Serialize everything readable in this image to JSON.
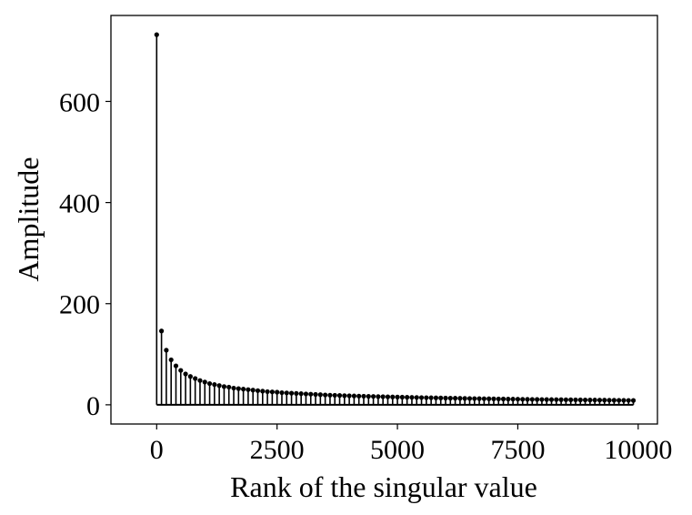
{
  "chart_data": {
    "type": "stem",
    "xlabel": "Rank of the singular value",
    "ylabel": "Amplitude",
    "xlim": [
      -950,
      10400
    ],
    "ylim": [
      -38,
      770
    ],
    "xticks": [
      0,
      2500,
      5000,
      7500,
      10000
    ],
    "yticks": [
      0,
      200,
      400,
      600
    ],
    "xtick_labels": [
      "0",
      "2500",
      "5000",
      "7500",
      "10000"
    ],
    "ytick_labels": [
      "0",
      "200",
      "400",
      "600"
    ],
    "grid": false,
    "color": "#000000",
    "x": [
      0,
      100,
      200,
      300,
      400,
      500,
      600,
      700,
      800,
      900,
      1000,
      1100,
      1200,
      1300,
      1400,
      1500,
      1600,
      1700,
      1800,
      1900,
      2000,
      2100,
      2200,
      2300,
      2400,
      2500,
      2600,
      2700,
      2800,
      2900,
      3000,
      3100,
      3200,
      3300,
      3400,
      3500,
      3600,
      3700,
      3800,
      3900,
      4000,
      4100,
      4200,
      4300,
      4400,
      4500,
      4600,
      4700,
      4800,
      4900,
      5000,
      5100,
      5200,
      5300,
      5400,
      5500,
      5600,
      5700,
      5800,
      5900,
      6000,
      6100,
      6200,
      6300,
      6400,
      6500,
      6600,
      6700,
      6800,
      6900,
      7000,
      7100,
      7200,
      7300,
      7400,
      7500,
      7600,
      7700,
      7800,
      7900,
      8000,
      8100,
      8200,
      8300,
      8400,
      8500,
      8600,
      8700,
      8800,
      8900,
      9000,
      9100,
      9200,
      9300,
      9400,
      9500,
      9600,
      9700,
      9800,
      9900
    ],
    "y": [
      732,
      146,
      108,
      89,
      77,
      68,
      61,
      56,
      52,
      48,
      45,
      42,
      40,
      38,
      36,
      35,
      33,
      32,
      31,
      30,
      29,
      28,
      27,
      26,
      25.5,
      25,
      24,
      23.5,
      23,
      22.5,
      22,
      21.5,
      21,
      20.5,
      20,
      19.5,
      19,
      18.8,
      18.5,
      18,
      17.8,
      17.5,
      17.2,
      17,
      16.7,
      16.5,
      16.2,
      16,
      15.8,
      15.5,
      15.3,
      15.1,
      14.9,
      14.7,
      14.5,
      14.3,
      14.1,
      13.9,
      13.7,
      13.5,
      13.3,
      13.1,
      13,
      12.8,
      12.6,
      12.5,
      12.3,
      12.2,
      12,
      11.9,
      11.7,
      11.6,
      11.5,
      11.3,
      11.2,
      11.1,
      10.9,
      10.8,
      10.7,
      10.6,
      10.5,
      10.4,
      10.3,
      10.2,
      10.1,
      10,
      9.9,
      9.8,
      9.7,
      9.6,
      9.5,
      9.4,
      9.3,
      9.2,
      9.1,
      9,
      8.9,
      8.8,
      8.7,
      8.6
    ]
  }
}
